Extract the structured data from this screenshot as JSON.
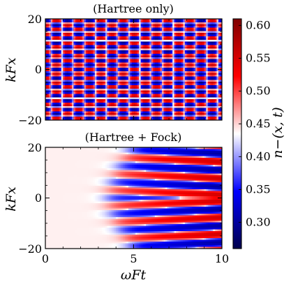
{
  "chart_data": [
    {
      "type": "heatmap",
      "title": "(Hartree only)",
      "xlabel": "",
      "ylabel": "k_F x",
      "ylabel_display": "kFx",
      "xlim": [
        0,
        10
      ],
      "ylim": [
        -20,
        20
      ],
      "xticks": [
        0,
        5,
        10
      ],
      "yticks": [
        -20,
        0,
        20
      ],
      "ytick_labels": [
        "−20",
        "0",
        "20"
      ],
      "xtick_labels": [],
      "pattern": "checkerboard standing-wave oscillation in x and t",
      "x_period": 3.5,
      "t_period": 1.26
    },
    {
      "type": "heatmap",
      "title": "(Hartree + Fock)",
      "xlabel": "ω_F t",
      "xlabel_display": "ωFt",
      "ylabel": "k_F x",
      "ylabel_display": "kFx",
      "xlim": [
        0,
        10
      ],
      "ylim": [
        -20,
        20
      ],
      "xticks": [
        0,
        5,
        10
      ],
      "xtick_labels": [
        "0",
        "5",
        "10"
      ],
      "yticks": [
        -20,
        0,
        20
      ],
      "ytick_labels": [
        "−20",
        "0",
        "20"
      ],
      "pattern": "uniform value until an instability onset growing from the edges near t≈3.5, stripes in x at later times",
      "uniform_value": 0.44,
      "stripe_period": 6.4,
      "onset_t": 3.5
    }
  ],
  "colorbar": {
    "label": "n_−(x, t)",
    "label_display": "n−(x, t)",
    "min": 0.26,
    "max": 0.61,
    "center": 0.425,
    "colormap": "seismic",
    "ticks": [
      0.3,
      0.35,
      0.4,
      0.45,
      0.5,
      0.55,
      0.6
    ],
    "tick_labels": [
      "0.30",
      "0.35",
      "0.40",
      "0.45",
      "0.50",
      "0.55",
      "0.60"
    ]
  }
}
